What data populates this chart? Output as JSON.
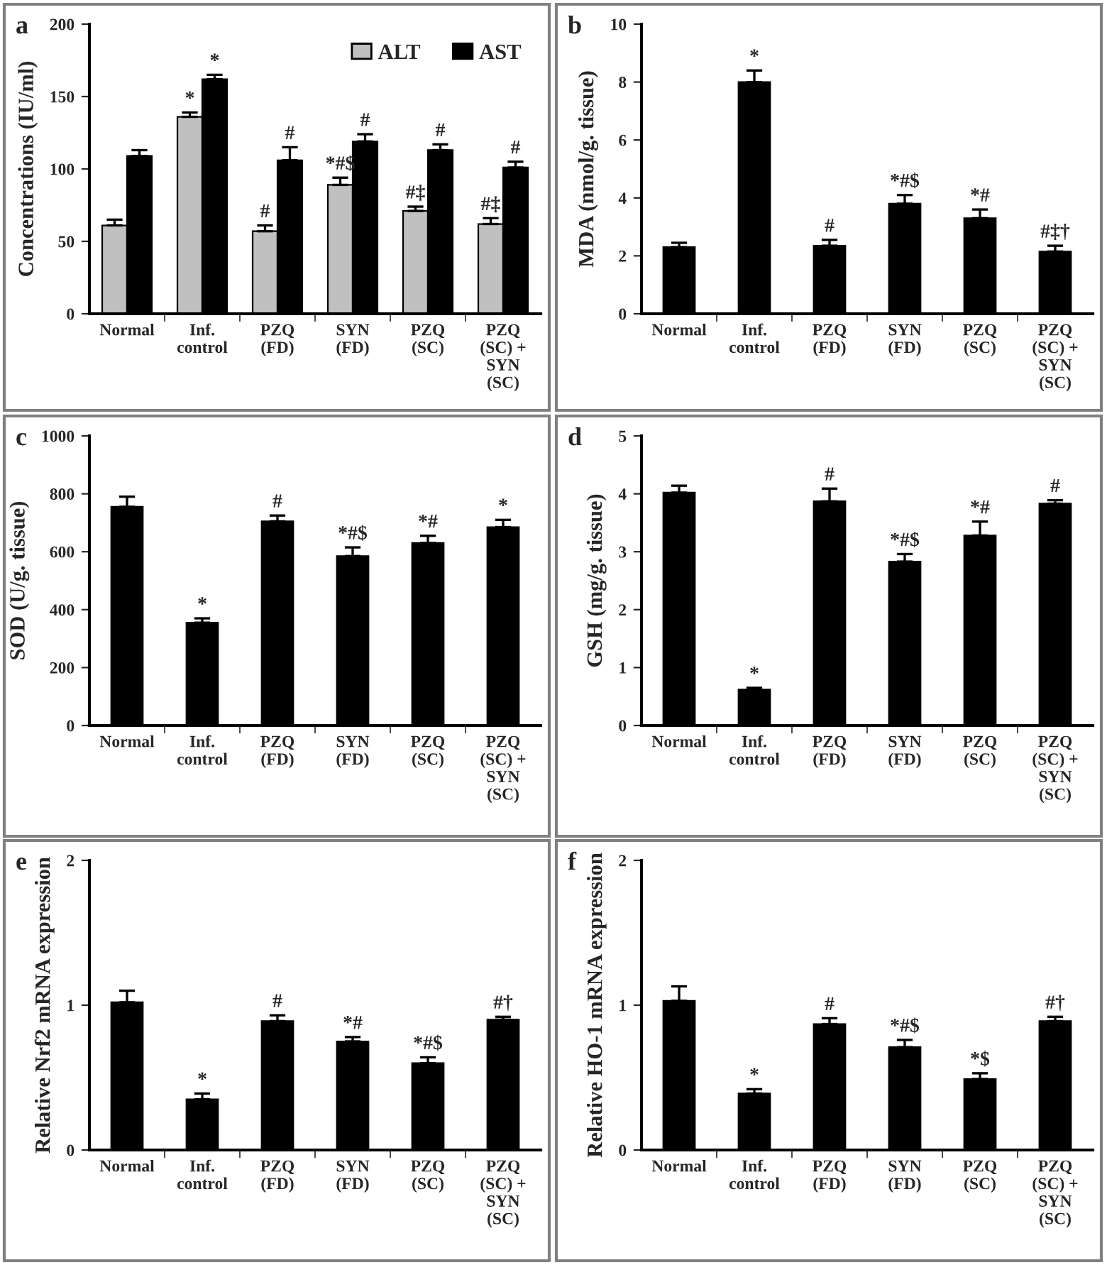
{
  "chart_data": [
    {
      "type": "bar",
      "title": "a",
      "ylabel": "Concentrations (IU/ml)",
      "categories": [
        "Normal",
        "Inf.\ncontrol",
        "PZQ\n(FD)",
        "SYN\n(FD)",
        "PZQ\n(SC)",
        "PZQ\n(SC) +\nSYN\n(SC)"
      ],
      "series": [
        {
          "name": "ALT",
          "color": "#c0c0c0",
          "values": [
            61,
            136,
            57,
            89,
            71,
            62
          ],
          "errors": [
            4,
            3,
            4,
            5,
            3,
            4
          ]
        },
        {
          "name": "AST",
          "color": "#000000",
          "values": [
            109,
            162,
            106,
            119,
            113,
            101
          ],
          "errors": [
            4,
            3,
            9,
            5,
            4,
            4
          ]
        }
      ],
      "ylim": [
        0,
        200
      ],
      "yticks": [
        0,
        50,
        100,
        150,
        200
      ],
      "legend": "top right",
      "annotations": [
        {
          "text": "*",
          "x": "Inf.\ncontrol",
          "y": 139
        },
        {
          "text": "*",
          "x": "Inf.\ncontrol",
          "y": 165
        },
        {
          "text": "#",
          "x": "PZQ\n(FD)",
          "y": 61
        },
        {
          "text": "#",
          "x": "PZQ\n(FD)",
          "y": 115
        },
        {
          "text": "*#$",
          "x": "SYN\n(FD)",
          "y": 94
        },
        {
          "text": "#",
          "x": "SYN\n(FD)",
          "y": 124
        },
        {
          "text": "#‡",
          "x": "PZQ\n(SC)",
          "y": 74
        },
        {
          "text": "#",
          "x": "PZQ\n(SC)",
          "y": 117
        },
        {
          "text": "#‡",
          "x": "PZQ\n(SC) +\nSYN\n(SC)",
          "y": 66
        },
        {
          "text": "#",
          "x": "PZQ\n(SC) +\nSYN\n(SC)",
          "y": 105
        }
      ]
    },
    {
      "type": "bar",
      "title": "b",
      "ylabel": "MDA (nmol/g. tissue)",
      "categories": [
        "Normal",
        "Inf.\ncontrol",
        "PZQ\n(FD)",
        "SYN\n(FD)",
        "PZQ\n(SC)",
        "PZQ\n(SC) +\nSYN\n(SC)"
      ],
      "series": [
        {
          "color": "#000000",
          "values": [
            2.3,
            8.0,
            2.35,
            3.8,
            3.3,
            2.15
          ],
          "errors": [
            0.15,
            0.4,
            0.2,
            0.3,
            0.3,
            0.2
          ]
        }
      ],
      "ylim": [
        0,
        10
      ],
      "yticks": [
        0,
        2,
        4,
        6,
        8,
        10
      ],
      "annotations": [
        {
          "text": "*",
          "x": "Inf.\ncontrol",
          "y": 8.4
        },
        {
          "text": "#",
          "x": "PZQ\n(FD)",
          "y": 2.55
        },
        {
          "text": "*#$",
          "x": "SYN\n(FD)",
          "y": 4.1
        },
        {
          "text": "*#",
          "x": "PZQ\n(SC)",
          "y": 3.6
        },
        {
          "text": "#‡†",
          "x": "PZQ\n(SC) +\nSYN\n(SC)",
          "y": 2.35
        }
      ]
    },
    {
      "type": "bar",
      "title": "c",
      "ylabel": "SOD (U/g. tissue)",
      "categories": [
        "Normal",
        "Inf.\ncontrol",
        "PZQ\n(FD)",
        "SYN\n(FD)",
        "PZQ\n(SC)",
        "PZQ\n(SC) +\nSYN\n(SC)"
      ],
      "series": [
        {
          "color": "#000000",
          "values": [
            755,
            355,
            705,
            585,
            630,
            685
          ],
          "errors": [
            35,
            15,
            20,
            30,
            25,
            25
          ]
        }
      ],
      "ylim": [
        0,
        1000
      ],
      "yticks": [
        0,
        200,
        400,
        600,
        800,
        1000
      ],
      "annotations": [
        {
          "text": "*",
          "x": "Inf.\ncontrol",
          "y": 370
        },
        {
          "text": "#",
          "x": "PZQ\n(FD)",
          "y": 725
        },
        {
          "text": "*#$",
          "x": "SYN\n(FD)",
          "y": 615
        },
        {
          "text": "*#",
          "x": "PZQ\n(SC)",
          "y": 655
        },
        {
          "text": "*",
          "x": "PZQ\n(SC) +\nSYN\n(SC)",
          "y": 710
        }
      ]
    },
    {
      "type": "bar",
      "title": "d",
      "ylabel": "GSH (mg/g. tissue)",
      "categories": [
        "Normal",
        "Inf.\ncontrol",
        "PZQ\n(FD)",
        "SYN\n(FD)",
        "PZQ\n(SC)",
        "PZQ\n(SC) +\nSYN\n(SC)"
      ],
      "series": [
        {
          "color": "#000000",
          "values": [
            4.02,
            0.62,
            3.87,
            2.83,
            3.28,
            3.83
          ],
          "errors": [
            0.12,
            0.03,
            0.22,
            0.13,
            0.24,
            0.06
          ]
        }
      ],
      "ylim": [
        0,
        5
      ],
      "yticks": [
        0,
        1,
        2,
        3,
        4,
        5
      ],
      "annotations": [
        {
          "text": "*",
          "x": "Inf.\ncontrol",
          "y": 0.65
        },
        {
          "text": "#",
          "x": "PZQ\n(FD)",
          "y": 4.09
        },
        {
          "text": "*#$",
          "x": "SYN\n(FD)",
          "y": 2.96
        },
        {
          "text": "*#",
          "x": "PZQ\n(SC)",
          "y": 3.52
        },
        {
          "text": "#",
          "x": "PZQ\n(SC) +\nSYN\n(SC)",
          "y": 3.89
        }
      ]
    },
    {
      "type": "bar",
      "title": "e",
      "ylabel": "Relative Nrf2 mRNA expression",
      "categories": [
        "Normal",
        "Inf.\ncontrol",
        "PZQ\n(FD)",
        "SYN\n(FD)",
        "PZQ\n(SC)",
        "PZQ\n(SC) +\nSYN\n(SC)"
      ],
      "series": [
        {
          "color": "#000000",
          "values": [
            1.02,
            0.35,
            0.89,
            0.75,
            0.6,
            0.9
          ],
          "errors": [
            0.08,
            0.04,
            0.04,
            0.03,
            0.04,
            0.02
          ]
        }
      ],
      "ylim": [
        0,
        2
      ],
      "yticks": [
        0,
        1,
        2
      ],
      "annotations": [
        {
          "text": "*",
          "x": "Inf.\ncontrol",
          "y": 0.39
        },
        {
          "text": "#",
          "x": "PZQ\n(FD)",
          "y": 0.93
        },
        {
          "text": "*#",
          "x": "SYN\n(FD)",
          "y": 0.78
        },
        {
          "text": "*#$",
          "x": "PZQ\n(SC)",
          "y": 0.64
        },
        {
          "text": "#†",
          "x": "PZQ\n(SC) +\nSYN\n(SC)",
          "y": 0.92
        }
      ]
    },
    {
      "type": "bar",
      "title": "f",
      "ylabel": "Relative HO-1 mRNA expression",
      "categories": [
        "Normal",
        "Inf.\ncontrol",
        "PZQ\n(FD)",
        "SYN\n(FD)",
        "PZQ\n(SC)",
        "PZQ\n(SC) +\nSYN\n(SC)"
      ],
      "series": [
        {
          "color": "#000000",
          "values": [
            1.03,
            0.39,
            0.87,
            0.71,
            0.49,
            0.89
          ],
          "errors": [
            0.1,
            0.03,
            0.04,
            0.05,
            0.04,
            0.03
          ]
        }
      ],
      "ylim": [
        0,
        2
      ],
      "yticks": [
        0,
        1,
        2
      ],
      "annotations": [
        {
          "text": "*",
          "x": "Inf.\ncontrol",
          "y": 0.42
        },
        {
          "text": "#",
          "x": "PZQ\n(FD)",
          "y": 0.91
        },
        {
          "text": "*#$",
          "x": "SYN\n(FD)",
          "y": 0.76
        },
        {
          "text": "*$",
          "x": "PZQ\n(SC)",
          "y": 0.53
        },
        {
          "text": "#†",
          "x": "PZQ\n(SC) +\nSYN\n(SC)",
          "y": 0.92
        }
      ]
    }
  ]
}
